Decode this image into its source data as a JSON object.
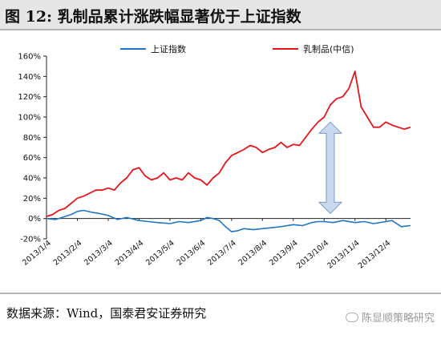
{
  "title": "图 12:  乳制品累计涨跌幅显著优于上证指数",
  "source": "数据来源：Wind，国泰君安证券研究",
  "watermark": "陈显顺策略研究",
  "colors": {
    "series_a": "#1f77c4",
    "series_b": "#e8141b",
    "arrow_fill": "#c9d9f0",
    "arrow_stroke": "#7d96c7"
  },
  "chart_data": {
    "type": "line",
    "yaxis": {
      "min": -20,
      "max": 160,
      "step": 20,
      "unit": "%",
      "tick_labels": [
        "-20%",
        "0%",
        "20%",
        "40%",
        "60%",
        "80%",
        "100%",
        "120%",
        "140%",
        "160%"
      ]
    },
    "xaxis": {
      "tick_labels": [
        "2013/1/4",
        "2013/2/4",
        "2013/3/4",
        "2013/4/4",
        "2013/5/4",
        "2013/6/4",
        "2013/7/4",
        "2013/8/4",
        "2013/9/4",
        "2013/10/4",
        "2013/11/4",
        "2013/12/4"
      ]
    },
    "grid": false,
    "legend": {
      "position": "top",
      "entries": [
        "上证指数",
        "乳制品(中信)"
      ]
    },
    "x_range": [
      0,
      11.8
    ],
    "series": [
      {
        "name": "上证指数",
        "color": "#1f77c4",
        "x": [
          0,
          0.3,
          0.6,
          0.8,
          1.0,
          1.2,
          1.5,
          1.7,
          2.0,
          2.3,
          2.6,
          3.0,
          3.3,
          3.6,
          4.0,
          4.3,
          4.6,
          5.0,
          5.2,
          5.4,
          5.6,
          5.8,
          6.0,
          6.2,
          6.4,
          6.7,
          7.0,
          7.3,
          7.6,
          8.0,
          8.3,
          8.6,
          8.8,
          9.0,
          9.3,
          9.6,
          10.0,
          10.3,
          10.6,
          11.0,
          11.2,
          11.5,
          11.8
        ],
        "values": [
          0,
          -1,
          2,
          4,
          7,
          8,
          6,
          5,
          3,
          -1,
          1,
          -2,
          -3,
          -4,
          -5,
          -3,
          -4,
          -2,
          1,
          0,
          -2,
          -8,
          -13,
          -12,
          -10,
          -11,
          -10,
          -9,
          -8,
          -6,
          -7,
          -4,
          -3,
          -3,
          -4,
          -2,
          -4,
          -3,
          -5,
          -3,
          -2,
          -8,
          -7
        ]
      },
      {
        "name": "乳制品(中信)",
        "color": "#e8141b",
        "x": [
          0,
          0.2,
          0.4,
          0.6,
          0.8,
          1.0,
          1.2,
          1.4,
          1.6,
          1.8,
          2.0,
          2.2,
          2.4,
          2.6,
          2.8,
          3.0,
          3.2,
          3.4,
          3.6,
          3.8,
          4.0,
          4.2,
          4.4,
          4.6,
          4.8,
          5.0,
          5.2,
          5.4,
          5.6,
          5.8,
          6.0,
          6.2,
          6.4,
          6.6,
          6.8,
          7.0,
          7.2,
          7.4,
          7.6,
          7.8,
          8.0,
          8.2,
          8.4,
          8.6,
          8.8,
          9.0,
          9.2,
          9.4,
          9.6,
          9.8,
          10.0,
          10.2,
          10.4,
          10.6,
          10.8,
          11.0,
          11.2,
          11.4,
          11.6,
          11.8
        ],
        "values": [
          2,
          4,
          8,
          10,
          15,
          20,
          22,
          25,
          28,
          28,
          30,
          28,
          35,
          40,
          48,
          50,
          42,
          38,
          40,
          45,
          38,
          40,
          38,
          45,
          40,
          38,
          33,
          40,
          45,
          55,
          62,
          65,
          68,
          72,
          70,
          65,
          68,
          70,
          75,
          70,
          73,
          72,
          80,
          88,
          95,
          100,
          112,
          118,
          120,
          128,
          145,
          110,
          100,
          90,
          90,
          95,
          92,
          90,
          88,
          90
        ]
      }
    ],
    "annotation": {
      "type": "double-arrow",
      "x": 9.2,
      "y_from": 5,
      "y_to": 95
    }
  }
}
